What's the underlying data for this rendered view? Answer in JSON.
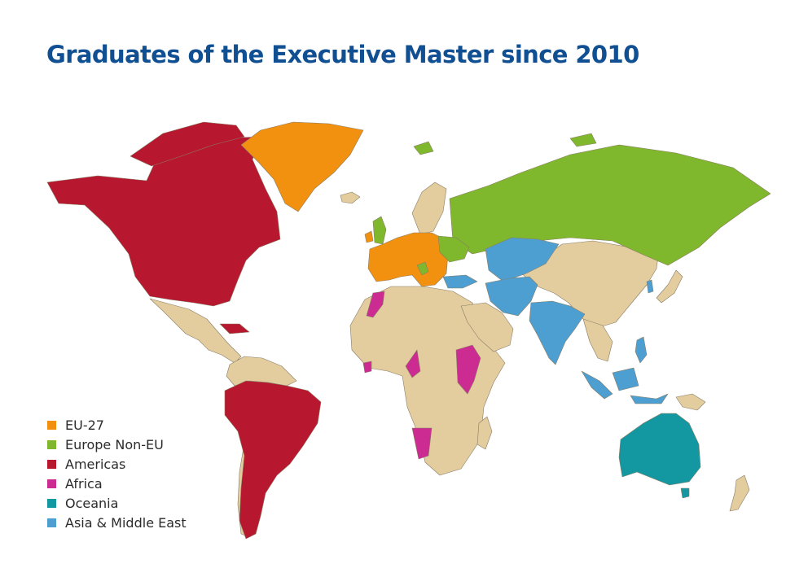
{
  "title": "Graduates of the Executive Master since 2010",
  "colors": {
    "title": "#0f4f92",
    "eu27": "#f29110",
    "europe_non_eu": "#7fb82c",
    "americas": "#b7182f",
    "africa": "#cc2b91",
    "oceania": "#1398a1",
    "asia_middle_east": "#4d9fd1",
    "other": "#e3cd9f",
    "border": "#8a7d66"
  },
  "legend": [
    {
      "label": "EU-27",
      "color_key": "eu27"
    },
    {
      "label": "Europe Non-EU",
      "color_key": "europe_non_eu"
    },
    {
      "label": "Americas",
      "color_key": "americas"
    },
    {
      "label": "Africa",
      "color_key": "africa"
    },
    {
      "label": "Oceania",
      "color_key": "oceania"
    },
    {
      "label": "Asia & Middle East",
      "color_key": "asia_middle_east"
    }
  ]
}
